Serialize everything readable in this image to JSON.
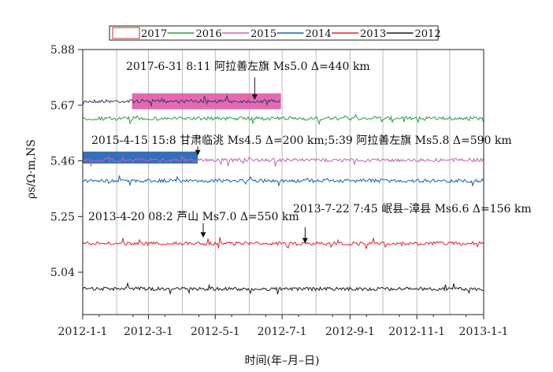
{
  "chart_data": {
    "type": "line",
    "title": "",
    "xlabel": "时间(年–月–日)",
    "ylabel": "ρs/Ω·m,NS",
    "xlim": [
      "2012-1-1",
      "2013-1-1"
    ],
    "ylim": [
      4.88,
      5.88
    ],
    "x_ticks": [
      "2012-1-1",
      "2012-3-1",
      "2012-5-1",
      "2012-7-1",
      "2012-9-1",
      "2012-11-1",
      "2013-1-1"
    ],
    "y_ticks": [
      "5.04",
      "5.25",
      "5.46",
      "5.67",
      "5.88"
    ],
    "grid": "vertical-monthly",
    "legend_position": "top",
    "series": [
      {
        "name": "2017",
        "color": "#c23531",
        "style": "box",
        "segments": [
          {
            "x": [
              "2012-1-1",
              "2012-6-30"
            ],
            "y": 5.685
          }
        ]
      },
      {
        "name": "2016",
        "color": "#2e9e3e",
        "segments": [
          {
            "x": [
              "2012-1-1",
              "2013-1-1"
            ],
            "y": 5.62
          }
        ]
      },
      {
        "name": "2015",
        "color": "#c266b3",
        "segments": [
          {
            "x": [
              "2012-1-1",
              "2013-1-1"
            ],
            "y": 5.463
          }
        ]
      },
      {
        "name": "2014",
        "color": "#1f5fb4",
        "segments": [
          {
            "x": [
              "2012-1-1",
              "2013-1-1"
            ],
            "y": 5.385
          }
        ]
      },
      {
        "name": "2013",
        "color": "#e0262b",
        "segments": [
          {
            "x": [
              "2012-1-1",
              "2013-1-1"
            ],
            "y": 5.148
          }
        ]
      },
      {
        "name": "2012",
        "color": "#1a1a1a",
        "segments": [
          {
            "x": [
              "2012-1-1",
              "2013-1-1"
            ],
            "y": 4.977
          }
        ]
      }
    ],
    "highlight_boxes": [
      {
        "series": "2017",
        "x": [
          "2012-2-15",
          "2012-6-30"
        ],
        "y": [
          5.655,
          5.715
        ],
        "color": "#e05aa8"
      },
      {
        "series": "2015",
        "x": [
          "2012-1-1",
          "2012-4-15"
        ],
        "y": [
          5.45,
          5.495
        ],
        "color": "#1f5fb4"
      }
    ],
    "annotations": [
      {
        "text": "2017-6-31 8:11 阿拉善左旗 Ms5.0 Δ=440 km",
        "arrow_x": "2012-6-6",
        "arrow_y": [
          5.775,
          5.69
        ]
      },
      {
        "text": "2015-4-15 15:8 甘肃临洮 Ms4.5 Δ=200 km;5:39 阿拉善左旗 Ms5.8 Δ=590 km",
        "arrow_x": "2012-4-15",
        "arrow_y": [
          5.515,
          5.48
        ]
      },
      {
        "text": "2013-4-20 08:2 芦山 Ms7.0 Δ=550 km",
        "arrow_x": "2012-4-20",
        "arrow_y": [
          5.225,
          5.17
        ]
      },
      {
        "text": "2013-7-22 7:45 岷县–漳县 Ms6.6 Δ=156 km",
        "arrow_x": "2012-7-22",
        "arrow_y": [
          5.21,
          5.148
        ]
      }
    ]
  }
}
